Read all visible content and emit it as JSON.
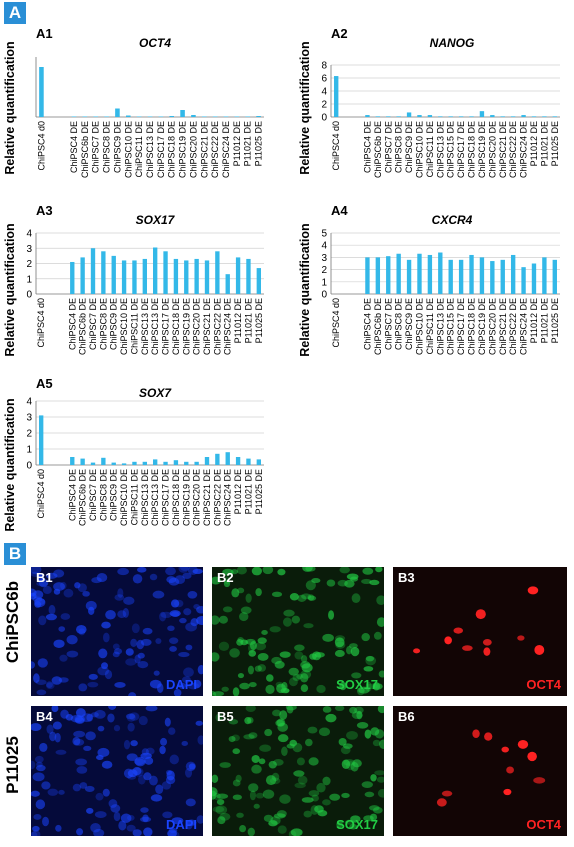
{
  "panel_A": {
    "label": "A"
  },
  "panel_B": {
    "label": "B"
  },
  "colors": {
    "bar": "#33b8e8",
    "badge": "#2a8fd6",
    "dapi": "#1a44ff",
    "sox17": "#22cc44",
    "oct4": "#ff2222"
  },
  "chart_data": [
    {
      "id": "A1",
      "type": "bar",
      "title": "OCT4",
      "ylabel": "Relative quantification",
      "ylim": [
        0,
        6
      ],
      "yticks": [],
      "categories": [
        "ChiPSC4 d0",
        "",
        "",
        "ChiPSC4 DE",
        "ChiPSC6b DE",
        "ChiPSC7 DE",
        "ChiPSC8 DE",
        "ChiPSC9 DE",
        "ChiPSC10 DE",
        "ChiPSC11 DE",
        "ChiPSC13 DE",
        "ChiPSC17 DE",
        "ChiPSC18 DE",
        "ChiPSC19 DE",
        "ChiPSC20 DE",
        "ChiPSC21 DE",
        "ChiPSC22 DE",
        "ChiPSC24 DE",
        "P11012 DE",
        "P11021 DE",
        "P11025 DE"
      ],
      "values": [
        5.0,
        0,
        0,
        0.05,
        0.05,
        0.05,
        0.05,
        0.85,
        0.15,
        0.05,
        0.05,
        0.05,
        0.1,
        0.7,
        0.2,
        0.05,
        0.05,
        0.05,
        0.05,
        0.05,
        0.1
      ]
    },
    {
      "id": "A2",
      "type": "bar",
      "title": "NANOG",
      "ylabel": "Relative quantification",
      "ylim": [
        0,
        8
      ],
      "yticks": [
        0,
        2,
        4,
        6,
        8
      ],
      "categories": [
        "ChiPSC4 d0",
        "",
        "",
        "ChiPSC4 DE",
        "ChiPSC6b DE",
        "ChiPSC7 DE",
        "ChiPSC8 DE",
        "ChiPSC9 DE",
        "ChiPSC10 DE",
        "ChiPSC11 DE",
        "ChiPSC13 DE",
        "ChiPSC15 DE",
        "ChiPSC17 DE",
        "ChiPSC18 DE",
        "ChiPSC19 DE",
        "ChiPSC20 DE",
        "ChiPSC21 DE",
        "ChiPSC22 DE",
        "ChiPSC24 DE",
        "P11012 DE",
        "P11021 DE",
        "P11025 DE"
      ],
      "values": [
        6.3,
        0,
        0,
        0.3,
        0.1,
        0.1,
        0.1,
        0.7,
        0.3,
        0.3,
        0.1,
        0.1,
        0.1,
        0.1,
        0.9,
        0.3,
        0.1,
        0.1,
        0.3,
        0.1,
        0.1,
        0.1
      ]
    },
    {
      "id": "A3",
      "type": "bar",
      "title": "SOX17",
      "ylabel": "Relative quantification",
      "ylim": [
        0,
        4
      ],
      "yticks": [
        0,
        1,
        2,
        3,
        4
      ],
      "categories": [
        "ChiPSC4 d0",
        "",
        "",
        "ChiPSC4 DE",
        "ChiPSC6b DE",
        "ChiPSC7 DE",
        "ChiPSC8 DE",
        "ChiPSC9 DE",
        "ChiPSC10 DE",
        "ChiPSC11 DE",
        "ChiPSC13 DE",
        "ChiPSC13 DE",
        "ChiPSC17 DE",
        "ChiPSC18 DE",
        "ChiPSC19 DE",
        "ChiPSC20 DE",
        "ChiPSC21 DE",
        "ChiPSC22 DE",
        "ChiPSC24 DE",
        "P11012 DE",
        "P11021 DE",
        "P11025 DE"
      ],
      "values": [
        0,
        0,
        0,
        2.1,
        2.4,
        3.0,
        2.8,
        2.5,
        2.2,
        2.2,
        2.3,
        3.05,
        2.8,
        2.3,
        2.2,
        2.3,
        2.2,
        2.8,
        1.3,
        2.4,
        2.3,
        1.7
      ]
    },
    {
      "id": "A4",
      "type": "bar",
      "title": "CXCR4",
      "ylabel": "Relative quantification",
      "ylim": [
        0,
        5
      ],
      "yticks": [
        0,
        1,
        2,
        3,
        4,
        5
      ],
      "categories": [
        "ChiPSC4 d0",
        "",
        "",
        "ChiPSC4 DE",
        "ChiPSC6b DE",
        "ChiPSC7 DE",
        "ChiPSC8 DE",
        "ChiPSC9 DE",
        "ChiPSC10 DE",
        "ChiPSC11 DE",
        "ChiPSC13 DE",
        "ChiPSC15 DE",
        "ChiPSC17 DE",
        "ChiPSC18 DE",
        "ChiPSC19 DE",
        "ChiPSC20 DE",
        "ChiPSC21 DE",
        "ChiPSC22 DE",
        "ChiPSC24 DE",
        "P11012 DE",
        "P11021 DE",
        "P11025 DE"
      ],
      "values": [
        0,
        0,
        0,
        3.0,
        3.0,
        3.1,
        3.3,
        2.8,
        3.3,
        3.2,
        3.4,
        2.8,
        2.8,
        3.2,
        3.0,
        2.7,
        2.8,
        3.2,
        2.2,
        2.5,
        3.0,
        2.8
      ]
    },
    {
      "id": "A5",
      "type": "bar",
      "title": "SOX7",
      "ylabel": "Relative quantification",
      "ylim": [
        0,
        4
      ],
      "yticks": [
        0,
        1,
        2,
        3,
        4
      ],
      "categories": [
        "ChiPSC4 d0",
        "",
        "",
        "ChiPSC4 DE",
        "ChiPSC6b DE",
        "ChiPSC7 DE",
        "ChiPSC8 DE",
        "ChiPSC9 DE",
        "ChiPSC10 DE",
        "ChiPSC11 DE",
        "ChiPSC13 DE",
        "ChiPSC13 DE",
        "ChiPSC17 DE",
        "ChiPSC18 DE",
        "ChiPSC19 DE",
        "ChiPSC20 DE",
        "ChiPSC21 DE",
        "ChiPSC22 DE",
        "ChiPSC24 DE",
        "P11012 DE",
        "P11021 DE",
        "P11025 DE"
      ],
      "values": [
        3.1,
        0,
        0,
        0.5,
        0.4,
        0.15,
        0.45,
        0.15,
        0.1,
        0.2,
        0.2,
        0.35,
        0.2,
        0.3,
        0.2,
        0.2,
        0.5,
        0.7,
        0.8,
        0.5,
        0.4,
        0.35
      ]
    }
  ],
  "micrographs": [
    {
      "id": "B1",
      "stain": "DAPI",
      "channel": "dapi"
    },
    {
      "id": "B2",
      "stain": "SOX17",
      "channel": "sox17"
    },
    {
      "id": "B3",
      "stain": "OCT4",
      "channel": "oct4"
    },
    {
      "id": "B4",
      "stain": "DAPI",
      "channel": "dapi"
    },
    {
      "id": "B5",
      "stain": "SOX17",
      "channel": "sox17"
    },
    {
      "id": "B6",
      "stain": "OCT4",
      "channel": "oct4"
    }
  ],
  "row_labels": [
    "ChiPSC6b",
    "P11025"
  ]
}
